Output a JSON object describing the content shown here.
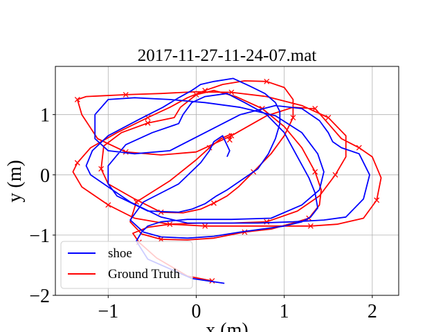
{
  "chart_data": {
    "type": "line",
    "title": "2017-11-27-11-24-07.mat",
    "xlabel": "x (m)",
    "ylabel": "y (m)",
    "xlim": [
      -1.6,
      2.3
    ],
    "ylim": [
      -2.0,
      1.8
    ],
    "xticks": [
      -1,
      0,
      1,
      2
    ],
    "xtick_labels": [
      "−1",
      "0",
      "1",
      "2"
    ],
    "yticks": [
      -2,
      -1,
      0,
      1
    ],
    "ytick_labels": [
      "−2",
      "−1",
      "0",
      "1"
    ],
    "grid": true,
    "legend_position": "lower-left",
    "series": [
      {
        "name": "shoe",
        "color": "#0000ff",
        "marker": "none",
        "x": [
          0.32,
          -0.05,
          -0.55,
          -0.68,
          -0.62,
          -0.55,
          -0.4,
          -0.1,
          0.4,
          0.85,
          1.2,
          1.4,
          1.45,
          1.38,
          1.2,
          0.9,
          0.5,
          0.1,
          -0.3,
          -0.7,
          -1.0,
          -1.15,
          -1.15,
          -1.0,
          -0.7,
          -0.3,
          0.1,
          0.5,
          0.9,
          1.2,
          1.4,
          1.5,
          1.55,
          1.65,
          1.85,
          1.97,
          1.9,
          1.7,
          1.45,
          1.1,
          0.7,
          0.3,
          -0.1,
          -0.4,
          -0.75,
          -1.0,
          -1.2,
          -1.25,
          -1.18,
          -1.0,
          -0.65,
          -0.38,
          -0.2,
          -0.05,
          0.05,
          0.2,
          0.42,
          0.6,
          0.78,
          0.9,
          0.95,
          0.95,
          0.9,
          0.82,
          0.7,
          0.5,
          0.35,
          0.23,
          0.1,
          -0.05,
          -0.2,
          -0.55,
          -0.9,
          -1.0,
          -1.0,
          -0.8,
          -0.5,
          -0.2,
          -0.15,
          -0.05,
          0.1,
          0.35,
          0.55,
          0.8,
          1.0,
          1.15,
          1.28,
          1.35,
          1.38,
          1.3,
          1.2,
          1.0,
          0.75,
          0.5,
          0.2,
          -0.1,
          -0.4,
          -0.6,
          -0.75,
          -0.6,
          -0.2,
          0.05,
          0.15,
          0.2,
          0.3,
          0.38,
          0.35
        ],
        "y": [
          -1.8,
          -1.72,
          -1.4,
          -1.1,
          -0.95,
          -0.85,
          -0.78,
          -0.74,
          -0.74,
          -0.72,
          -0.5,
          -0.25,
          0.05,
          0.35,
          0.7,
          0.98,
          1.12,
          1.2,
          1.25,
          1.28,
          1.25,
          1.0,
          0.6,
          0.4,
          0.35,
          0.4,
          0.7,
          1.0,
          1.15,
          1.1,
          0.9,
          0.7,
          0.55,
          0.45,
          0.35,
          0.0,
          -0.4,
          -0.7,
          -0.75,
          -0.78,
          -0.8,
          -0.8,
          -0.8,
          -0.7,
          -0.45,
          -0.2,
          0.0,
          0.15,
          0.4,
          0.65,
          0.92,
          1.12,
          1.28,
          1.4,
          1.5,
          1.55,
          1.6,
          1.48,
          1.35,
          1.2,
          1.05,
          0.85,
          0.6,
          0.35,
          0.1,
          -0.1,
          -0.25,
          -0.35,
          -0.48,
          -0.57,
          -0.62,
          -0.6,
          -0.35,
          -0.15,
          0.15,
          0.5,
          0.7,
          0.85,
          1.0,
          1.2,
          1.3,
          1.35,
          1.2,
          1.0,
          0.7,
          0.3,
          -0.05,
          -0.3,
          -0.55,
          -0.7,
          -0.78,
          -0.85,
          -0.9,
          -0.95,
          -1.02,
          -1.05,
          -1.03,
          -0.95,
          -0.75,
          -0.45,
          -0.15,
          0.2,
          0.4,
          0.55,
          0.65,
          0.4,
          0.3
        ]
      },
      {
        "name": "Ground Truth",
        "color": "#ff0000",
        "marker": "x",
        "x": [
          0.18,
          -0.1,
          -0.45,
          -0.65,
          -0.72,
          -0.55,
          -0.3,
          0.05,
          0.4,
          0.8,
          1.15,
          1.4,
          1.58,
          1.7,
          1.7,
          1.5,
          1.2,
          0.8,
          0.4,
          0.0,
          -0.4,
          -0.8,
          -1.1,
          -1.25,
          -1.35,
          -1.3,
          -1.12,
          -0.8,
          -0.4,
          0.0,
          0.4,
          0.8,
          1.1,
          1.35,
          1.5,
          1.65,
          1.85,
          2.0,
          2.1,
          2.05,
          1.9,
          1.6,
          1.3,
          0.9,
          0.5,
          0.1,
          -0.3,
          -0.7,
          -1.0,
          -1.3,
          -1.4,
          -1.35,
          -1.2,
          -0.9,
          -0.55,
          -0.3,
          -0.1,
          0.1,
          0.3,
          0.55,
          0.8,
          1.0,
          1.1,
          1.1,
          1.0,
          0.85,
          0.65,
          0.48,
          0.35,
          0.2,
          0.05,
          -0.15,
          -0.4,
          -0.7,
          -1.0,
          -1.08,
          -1.05,
          -0.85,
          -0.55,
          -0.25,
          -0.18,
          0.0,
          0.2,
          0.45,
          0.75,
          1.0,
          1.2,
          1.35,
          1.42,
          1.4,
          1.28,
          1.1,
          0.85,
          0.55,
          0.2,
          -0.1,
          -0.4,
          -0.62,
          -0.75,
          -0.68,
          -0.3,
          0.0,
          0.15,
          0.28,
          0.4,
          0.38
        ],
        "y": [
          -1.76,
          -1.68,
          -1.38,
          -1.12,
          -0.97,
          -0.87,
          -0.82,
          -0.8,
          -0.8,
          -0.78,
          -0.6,
          -0.35,
          0.0,
          0.3,
          0.65,
          0.95,
          1.15,
          1.3,
          1.37,
          1.38,
          1.35,
          1.33,
          1.31,
          1.3,
          1.25,
          1.0,
          0.6,
          0.38,
          0.33,
          0.38,
          0.65,
          0.98,
          1.12,
          1.1,
          0.85,
          0.6,
          0.45,
          0.3,
          -0.05,
          -0.42,
          -0.72,
          -0.82,
          -0.85,
          -0.85,
          -0.85,
          -0.85,
          -0.82,
          -0.72,
          -0.5,
          -0.2,
          0.05,
          0.2,
          0.45,
          0.7,
          0.95,
          1.12,
          1.28,
          1.4,
          1.5,
          1.56,
          1.55,
          1.45,
          1.25,
          0.95,
          0.65,
          0.35,
          0.05,
          -0.2,
          -0.35,
          -0.47,
          -0.57,
          -0.63,
          -0.62,
          -0.4,
          -0.15,
          0.1,
          0.48,
          0.7,
          0.86,
          0.95,
          1.12,
          1.33,
          1.4,
          1.3,
          1.1,
          0.8,
          0.45,
          0.05,
          -0.25,
          -0.5,
          -0.72,
          -0.8,
          -0.9,
          -0.95,
          -1.05,
          -1.08,
          -1.07,
          -0.98,
          -0.78,
          -0.45,
          -0.1,
          0.25,
          0.45,
          0.6,
          0.68,
          0.58
        ]
      }
    ]
  }
}
